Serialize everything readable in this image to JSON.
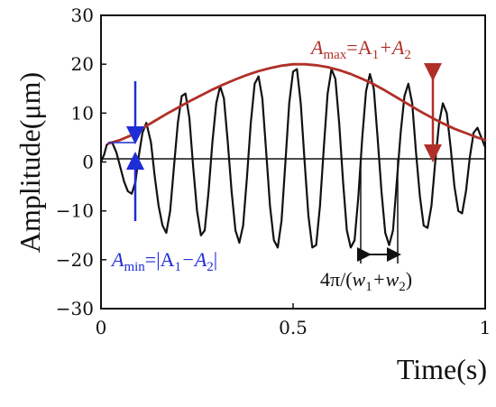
{
  "colors": {
    "signal": "#111111",
    "envelope": "#b03028",
    "amax_annotation": "#b03028",
    "amin_annotation": "#1f2dd6",
    "period_annotation": "#111111"
  },
  "chart_data": {
    "type": "line",
    "xlabel": "Time(s)",
    "ylabel": "Amplitude(μm)",
    "xlim": [
      0,
      1
    ],
    "ylim": [
      -30,
      30
    ],
    "x_ticks": [
      0,
      0.5,
      1
    ],
    "x_tick_labels": [
      "0",
      "0.5",
      "1"
    ],
    "y_ticks": [
      30,
      20,
      10,
      0,
      -10,
      -20,
      -30
    ],
    "y_tick_labels": [
      "30",
      "20",
      "10",
      "0",
      "−10",
      "−20",
      "−30"
    ],
    "grid": false,
    "series": [
      {
        "type": "line",
        "x": [
          0.0,
          0.008,
          0.015,
          0.023,
          0.03,
          0.04,
          0.05,
          0.06,
          0.07,
          0.08,
          0.09,
          0.098,
          0.108,
          0.118,
          0.13,
          0.14,
          0.15,
          0.16,
          0.17,
          0.18,
          0.19,
          0.2,
          0.21,
          0.22,
          0.23,
          0.24,
          0.25,
          0.26,
          0.27,
          0.28,
          0.29,
          0.3,
          0.31,
          0.32,
          0.33,
          0.34,
          0.35,
          0.36,
          0.37,
          0.38,
          0.39,
          0.4,
          0.41,
          0.42,
          0.43,
          0.44,
          0.45,
          0.46,
          0.47,
          0.48,
          0.49,
          0.5,
          0.51,
          0.52,
          0.53,
          0.54,
          0.55,
          0.56,
          0.57,
          0.58,
          0.59,
          0.6,
          0.61,
          0.62,
          0.63,
          0.64,
          0.65,
          0.66,
          0.67,
          0.68,
          0.69,
          0.7,
          0.71,
          0.72,
          0.73,
          0.74,
          0.75,
          0.76,
          0.77,
          0.78,
          0.79,
          0.8,
          0.81,
          0.82,
          0.83,
          0.84,
          0.85,
          0.86,
          0.87,
          0.88,
          0.89,
          0.9,
          0.91,
          0.92,
          0.93,
          0.94,
          0.95,
          0.96,
          0.97,
          0.98,
          0.99,
          1.0
        ],
        "values": [
          0.0,
          1.5,
          3.5,
          4.0,
          3.8,
          2.0,
          -1.0,
          -4.0,
          -6.0,
          -6.5,
          -4.0,
          1.0,
          6.0,
          8.0,
          4.0,
          -3.0,
          -9.0,
          -13.0,
          -14.5,
          -10.0,
          -1.0,
          8.0,
          13.5,
          14.0,
          9.0,
          -1.0,
          -10.0,
          -15.0,
          -14.0,
          -6.0,
          4.0,
          12.0,
          15.5,
          13.0,
          4.0,
          -6.0,
          -14.0,
          -16.5,
          -13.0,
          -3.0,
          8.0,
          16.0,
          17.5,
          13.0,
          2.0,
          -9.0,
          -16.0,
          -17.5,
          -12.0,
          0.0,
          12.0,
          18.5,
          19.0,
          12.0,
          0.0,
          -11.0,
          -17.5,
          -17.0,
          -9.0,
          3.0,
          14.0,
          19.0,
          17.0,
          8.0,
          -4.0,
          -14.0,
          -17.5,
          -16.0,
          -7.0,
          5.0,
          14.5,
          18.0,
          15.0,
          5.0,
          -6.0,
          -14.5,
          -17.0,
          -14.0,
          -4.0,
          6.0,
          13.5,
          16.0,
          12.0,
          2.0,
          -7.0,
          -13.0,
          -13.5,
          -9.0,
          0.0,
          8.0,
          12.0,
          10.0,
          3.0,
          -5.0,
          -10.0,
          -10.5,
          -6.0,
          1.0,
          6.0,
          7.0,
          5.0,
          3.0
        ]
      },
      {
        "type": "line",
        "x": [
          0.02,
          0.05,
          0.08,
          0.11,
          0.14,
          0.17,
          0.2,
          0.23,
          0.26,
          0.29,
          0.32,
          0.35,
          0.38,
          0.41,
          0.44,
          0.47,
          0.5,
          0.53,
          0.56,
          0.59,
          0.62,
          0.65,
          0.68,
          0.71,
          0.74,
          0.77,
          0.8,
          0.83,
          0.86,
          0.89,
          0.92,
          0.95,
          0.98,
          1.0
        ],
        "values": [
          3.8,
          4.5,
          5.5,
          7.0,
          8.4,
          9.8,
          11.1,
          12.4,
          13.6,
          14.8,
          15.9,
          16.9,
          17.8,
          18.6,
          19.2,
          19.7,
          20.0,
          20.0,
          19.8,
          19.4,
          18.8,
          18.0,
          17.0,
          15.9,
          14.6,
          13.2,
          11.8,
          10.4,
          9.1,
          7.9,
          6.8,
          5.9,
          5.0,
          4.5
        ]
      }
    ],
    "annotations": {
      "amax": {
        "label_letter": "A",
        "label_sub": "max",
        "label_rhs": "=A",
        "label_sub1": "1",
        "label_plus": "+A",
        "label_sub2": "2"
      },
      "amin": {
        "label_letter": "A",
        "label_sub": "min",
        "label_rhs": "=|A",
        "label_sub1": "1",
        "label_minus": "−A",
        "label_sub2": "2",
        "label_end": "|"
      },
      "period": {
        "label_prefix": "4π/(",
        "label_w1": "w",
        "label_sub1": "1",
        "label_plus": "+w",
        "label_sub2": "2",
        "label_end": ")"
      }
    }
  }
}
